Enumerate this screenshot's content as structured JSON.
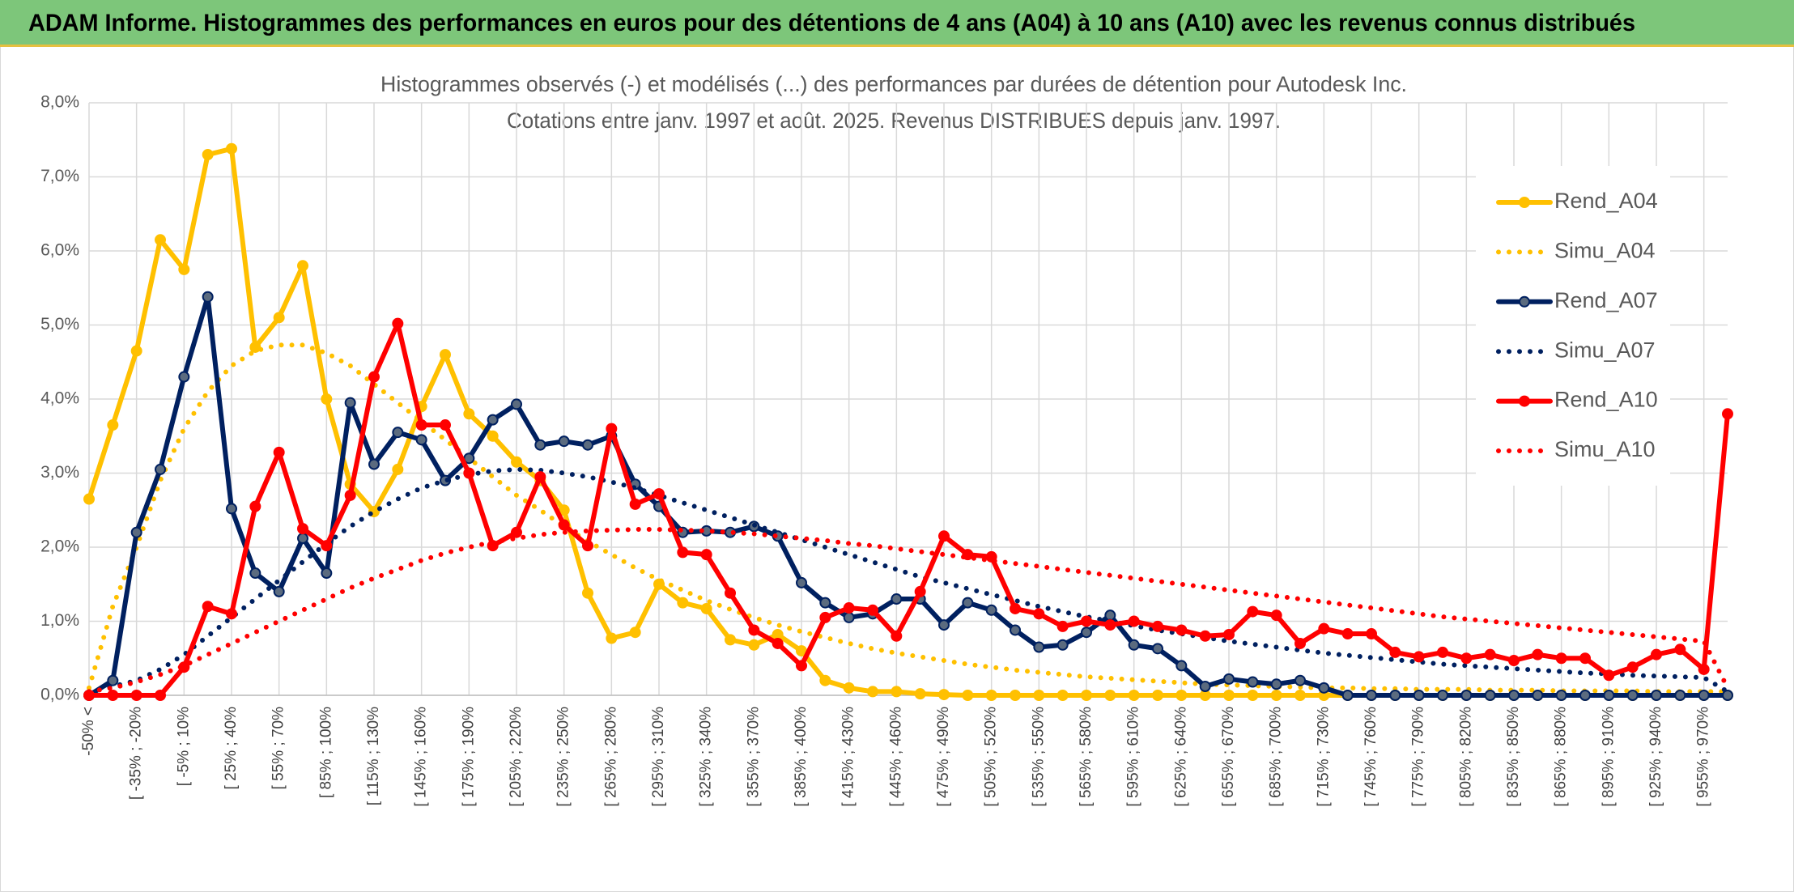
{
  "header": {
    "title": "ADAM Informe. Histogrammes des performances en euros pour des détentions de 4 ans (A04) à 10 ans (A10) avec les revenus connus distribués"
  },
  "chart_data": {
    "type": "line",
    "title": [
      "Histogrammes observés (-) et modélisés (...) des performances par durées de détention pour Autodesk Inc.",
      "Cotations entre janv. 1997 et août. 2025. Revenus DISTRIBUES depuis janv. 1997."
    ],
    "categories": [
      "-50% <",
      null,
      "[ -35% ; -20%",
      null,
      "[ -5% ; 10%",
      null,
      "[ 25% ; 40%",
      null,
      "[ 55% ; 70%",
      null,
      "[ 85% ; 100%",
      null,
      "[ 115% ; 130%",
      null,
      "[ 145% ; 160%",
      null,
      "[ 175% ; 190%",
      null,
      "[ 205% ; 220%",
      null,
      "[ 235% ; 250%",
      null,
      "[ 265% ; 280%",
      null,
      "[ 295% ; 310%",
      null,
      "[ 325% ; 340%",
      null,
      "[ 355% ; 370%",
      null,
      "[ 385% ; 400%",
      null,
      "[ 415% ; 430%",
      null,
      "[ 445% ; 460%",
      null,
      "[ 475% ; 490%",
      null,
      "[ 505% ; 520%",
      null,
      "[ 535% ; 550%",
      null,
      "[ 565% ; 580%",
      null,
      "[ 595% ; 610%",
      null,
      "[ 625% ; 640%",
      null,
      "[ 655% ; 670%",
      null,
      "[ 685% ; 700%",
      null,
      "[ 715% ; 730%",
      null,
      "[ 745% ; 760%",
      null,
      "[ 775% ; 790%",
      null,
      "[ 805% ; 820%",
      null,
      "[ 835% ; 850%",
      null,
      "[ 865% ; 880%",
      null,
      "[ 895% ; 910%",
      null,
      "[ 925% ; 940%",
      null,
      "[ 955% ; 970%",
      null
    ],
    "series": [
      {
        "name": "Rend_A04",
        "color": "#FFC000",
        "style": "solid",
        "markers": true,
        "values": [
          2.65,
          3.65,
          4.65,
          6.15,
          5.75,
          7.3,
          7.38,
          4.7,
          5.1,
          5.8,
          4.0,
          2.85,
          2.48,
          3.05,
          3.9,
          4.6,
          3.8,
          3.5,
          3.15,
          2.9,
          2.5,
          1.38,
          0.77,
          0.85,
          1.5,
          1.25,
          1.17,
          0.75,
          0.68,
          0.82,
          0.6,
          0.2,
          0.1,
          0.05,
          0.05,
          0.02,
          0.01,
          0,
          0,
          0,
          0,
          0,
          0,
          0,
          0,
          0,
          0,
          0,
          0,
          0,
          0,
          0,
          0,
          0,
          0,
          0,
          0,
          0,
          0,
          0,
          0,
          0,
          0,
          0,
          0,
          0,
          0,
          0,
          0,
          0
        ]
      },
      {
        "name": "Simu_A04",
        "color": "#FFC000",
        "style": "dotted",
        "markers": false,
        "values": [
          0.1,
          1.2,
          2.0,
          2.9,
          3.6,
          4.1,
          4.45,
          4.65,
          4.73,
          4.73,
          4.62,
          4.45,
          4.2,
          3.95,
          3.7,
          3.45,
          3.2,
          2.95,
          2.7,
          2.5,
          2.28,
          2.08,
          1.9,
          1.72,
          1.56,
          1.42,
          1.28,
          1.16,
          1.05,
          0.95,
          0.86,
          0.78,
          0.7,
          0.63,
          0.57,
          0.52,
          0.47,
          0.42,
          0.38,
          0.34,
          0.31,
          0.28,
          0.25,
          0.23,
          0.21,
          0.19,
          0.17,
          0.15,
          0.14,
          0.13,
          0.12,
          0.11,
          0.1,
          0.1,
          0.09,
          0.09,
          0.08,
          0.08,
          0.08,
          0.07,
          0.07,
          0.07,
          0.06,
          0.06,
          0.06,
          0.06,
          0.05,
          0.05,
          0.05,
          0.05
        ]
      },
      {
        "name": "Rend_A07",
        "color": "#002060",
        "style": "solid",
        "markers": true,
        "values": [
          0,
          0.2,
          2.2,
          3.05,
          4.3,
          5.38,
          2.52,
          1.65,
          1.4,
          2.12,
          1.65,
          3.95,
          3.12,
          3.55,
          3.45,
          2.9,
          3.2,
          3.72,
          3.93,
          3.38,
          3.43,
          3.38,
          3.5,
          2.85,
          2.55,
          2.2,
          2.22,
          2.2,
          2.28,
          2.15,
          1.52,
          1.25,
          1.05,
          1.1,
          1.3,
          1.3,
          0.95,
          1.25,
          1.15,
          0.88,
          0.65,
          0.68,
          0.85,
          1.08,
          0.68,
          0.63,
          0.4,
          0.12,
          0.22,
          0.18,
          0.15,
          0.2,
          0.1,
          0,
          0,
          0,
          0,
          0,
          0,
          0,
          0,
          0,
          0,
          0,
          0,
          0,
          0,
          0,
          0,
          0
        ]
      },
      {
        "name": "Simu_A07",
        "color": "#002060",
        "style": "dotted",
        "markers": false,
        "values": [
          0.05,
          0.12,
          0.2,
          0.35,
          0.55,
          0.8,
          1.05,
          1.3,
          1.55,
          1.8,
          2.05,
          2.28,
          2.48,
          2.65,
          2.8,
          2.9,
          2.98,
          3.03,
          3.05,
          3.04,
          3.0,
          2.95,
          2.88,
          2.8,
          2.7,
          2.6,
          2.5,
          2.4,
          2.3,
          2.2,
          2.1,
          2.0,
          1.9,
          1.8,
          1.7,
          1.6,
          1.52,
          1.44,
          1.36,
          1.28,
          1.2,
          1.13,
          1.06,
          1.0,
          0.94,
          0.88,
          0.83,
          0.78,
          0.73,
          0.69,
          0.65,
          0.61,
          0.57,
          0.54,
          0.51,
          0.48,
          0.45,
          0.42,
          0.4,
          0.38,
          0.36,
          0.34,
          0.32,
          0.3,
          0.29,
          0.27,
          0.26,
          0.25,
          0.24,
          0.05
        ]
      },
      {
        "name": "Rend_A10",
        "color": "#FF0000",
        "style": "solid",
        "markers": true,
        "values": [
          0,
          0,
          0,
          0,
          0.38,
          1.2,
          1.1,
          2.55,
          3.28,
          2.25,
          2.02,
          2.7,
          4.3,
          5.02,
          3.65,
          3.65,
          3.0,
          2.02,
          2.2,
          2.95,
          2.3,
          2.02,
          3.6,
          2.58,
          2.72,
          1.93,
          1.9,
          1.38,
          0.88,
          0.7,
          0.4,
          1.05,
          1.18,
          1.15,
          0.8,
          1.4,
          2.15,
          1.9,
          1.87,
          1.17,
          1.1,
          0.93,
          1.0,
          0.95,
          1.0,
          0.93,
          0.88,
          0.8,
          0.82,
          1.13,
          1.08,
          0.7,
          0.9,
          0.83,
          0.83,
          0.58,
          0.52,
          0.58,
          0.5,
          0.55,
          0.47,
          0.55,
          0.5,
          0.5,
          0.27,
          0.38,
          0.55,
          0.62,
          0.35,
          3.8
        ]
      },
      {
        "name": "Simu_A10",
        "color": "#FF0000",
        "style": "dotted",
        "markers": false,
        "values": [
          0.05,
          0.1,
          0.18,
          0.28,
          0.4,
          0.55,
          0.7,
          0.85,
          1.0,
          1.15,
          1.3,
          1.45,
          1.58,
          1.7,
          1.82,
          1.92,
          2.0,
          2.07,
          2.12,
          2.17,
          2.2,
          2.22,
          2.23,
          2.24,
          2.24,
          2.23,
          2.22,
          2.2,
          2.18,
          2.15,
          2.12,
          2.09,
          2.05,
          2.02,
          1.98,
          1.94,
          1.9,
          1.86,
          1.82,
          1.78,
          1.74,
          1.7,
          1.66,
          1.62,
          1.58,
          1.54,
          1.5,
          1.46,
          1.42,
          1.38,
          1.34,
          1.3,
          1.26,
          1.22,
          1.18,
          1.14,
          1.1,
          1.06,
          1.03,
          1.0,
          0.97,
          0.94,
          0.91,
          0.88,
          0.85,
          0.82,
          0.79,
          0.76,
          0.73,
          0.1
        ]
      }
    ],
    "ylim": [
      0,
      8
    ],
    "yticks": [
      {
        "value": 0,
        "label": "0,0%"
      },
      {
        "value": 1,
        "label": "1,0%"
      },
      {
        "value": 2,
        "label": "2,0%"
      },
      {
        "value": 3,
        "label": "3,0%"
      },
      {
        "value": 4,
        "label": "4,0%"
      },
      {
        "value": 5,
        "label": "5,0%"
      },
      {
        "value": 6,
        "label": "6,0%"
      },
      {
        "value": 7,
        "label": "7,0%"
      },
      {
        "value": 8,
        "label": "8,0%"
      }
    ],
    "grid": true,
    "legend": "right"
  }
}
